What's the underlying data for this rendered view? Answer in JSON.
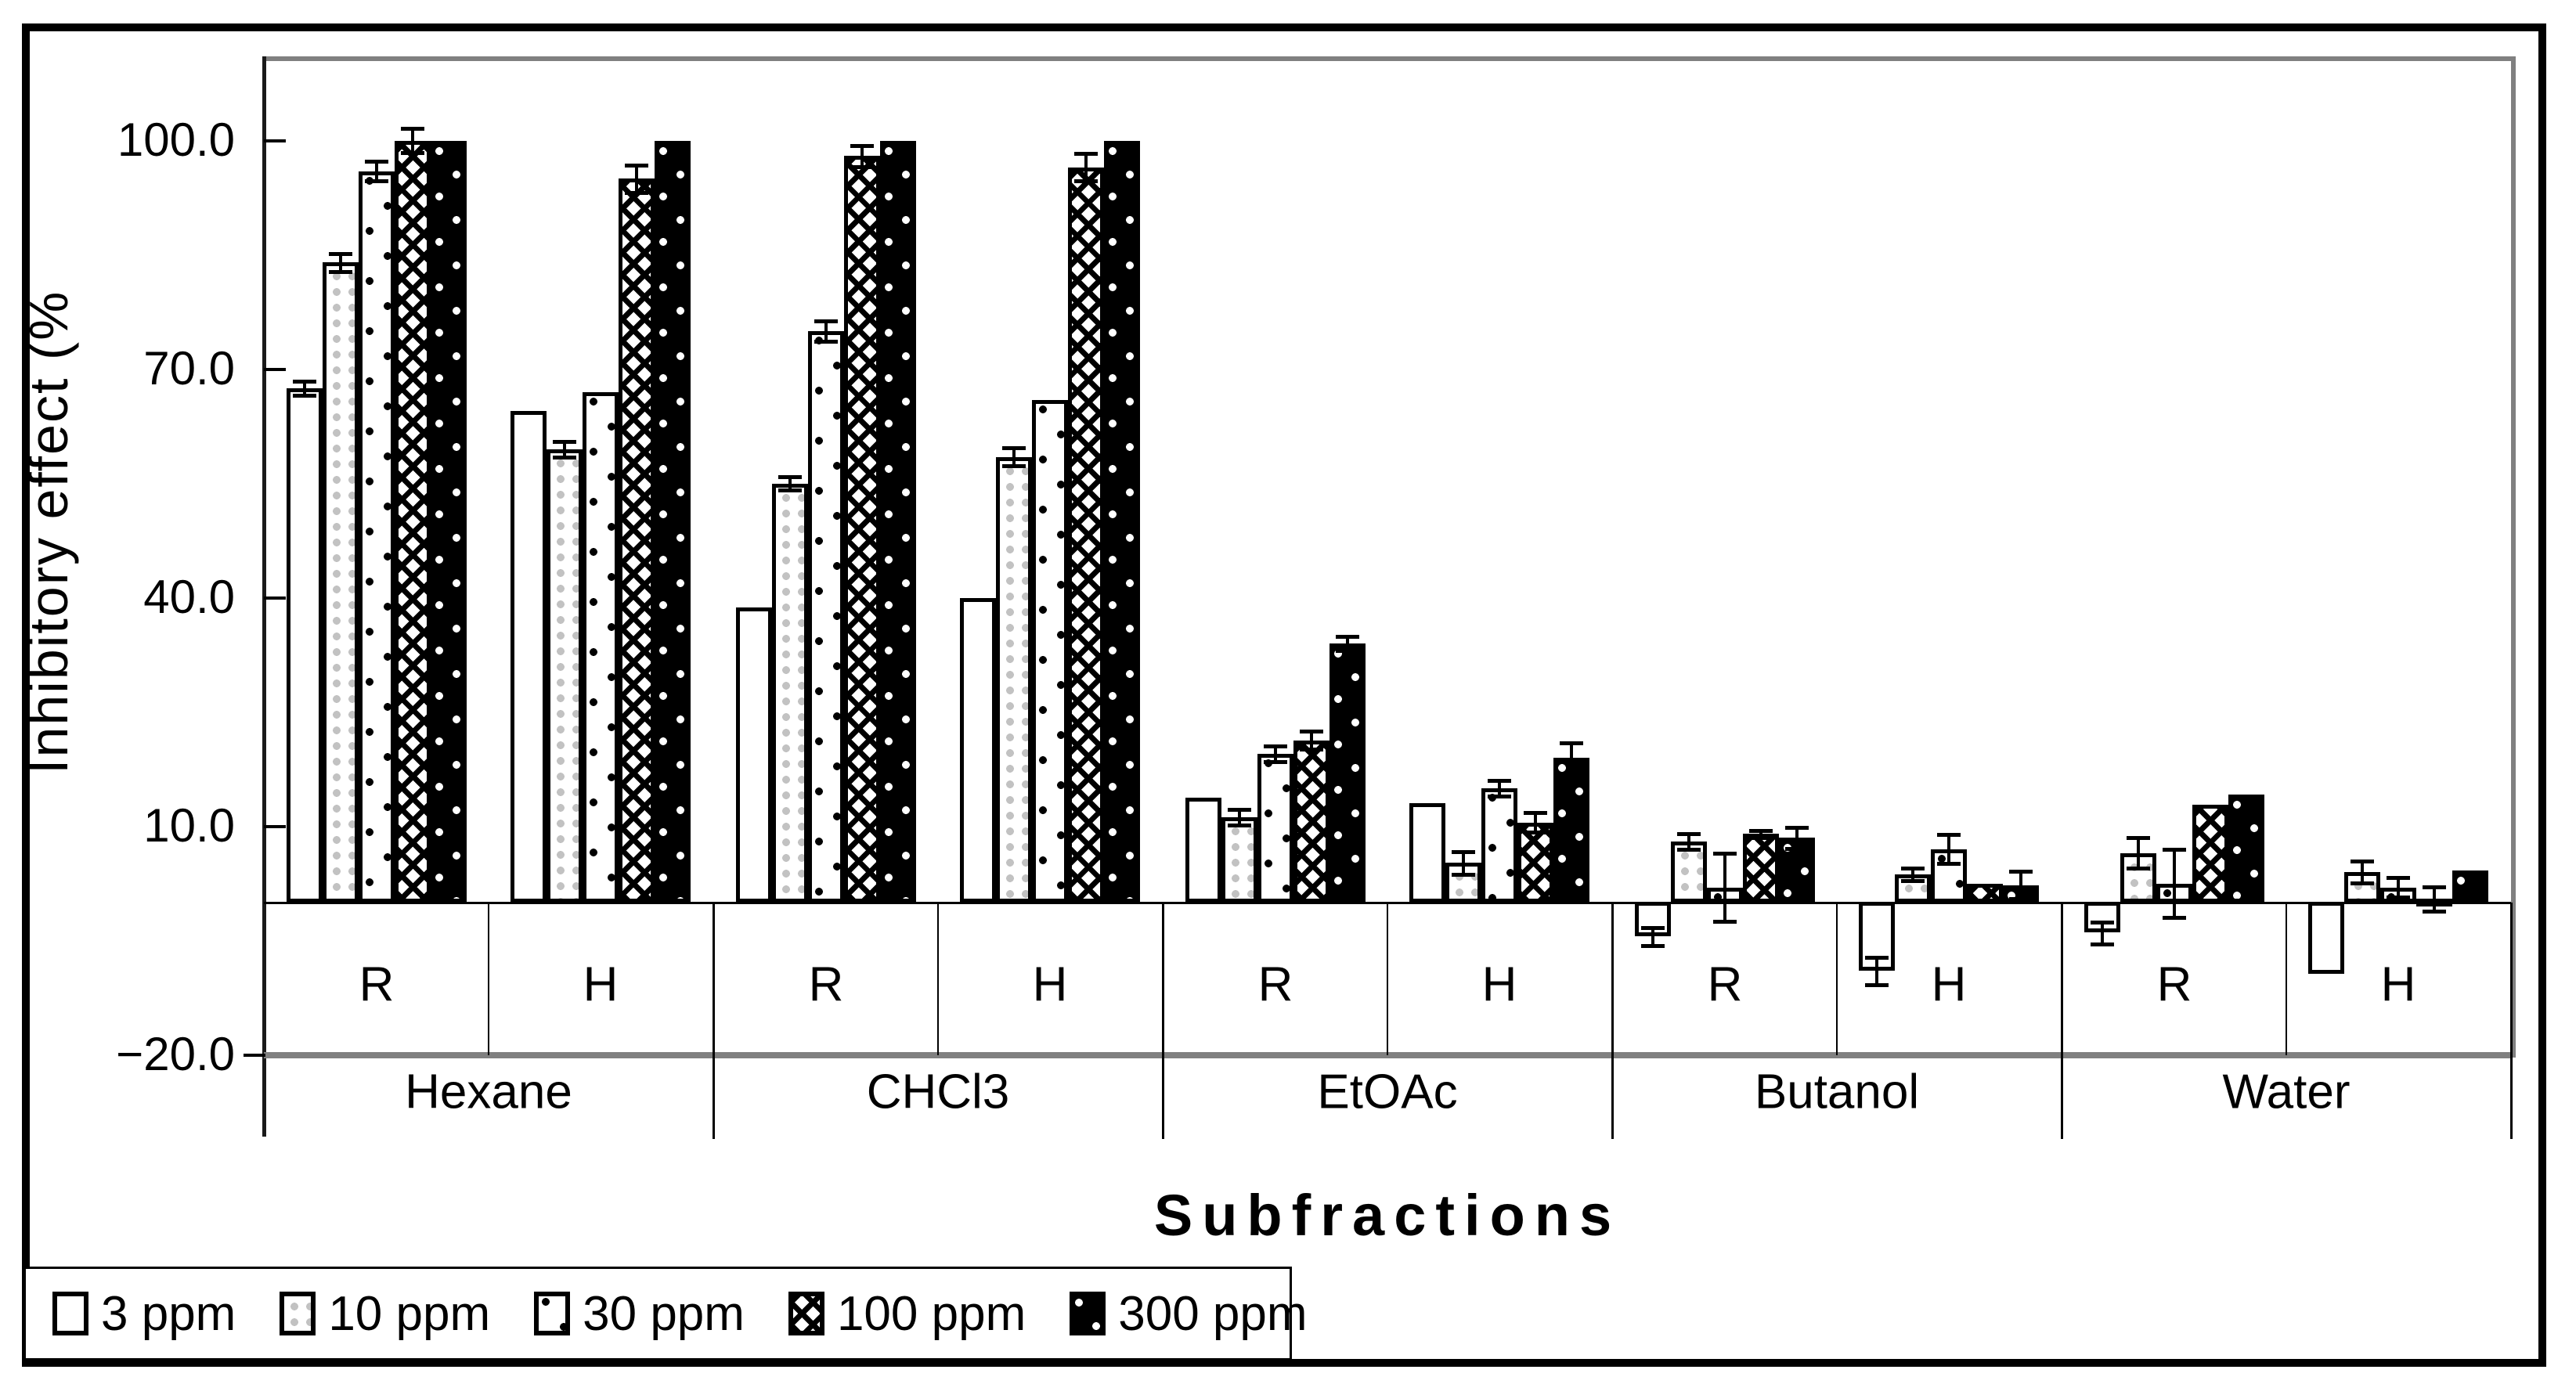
{
  "figure": {
    "y_axis": {
      "label": "Inhibitory effect (%",
      "ticks": [
        {
          "label": "100.0",
          "value": 100
        },
        {
          "label": "70.0",
          "value": 70
        },
        {
          "label": "40.0",
          "value": 40
        },
        {
          "label": "10.0",
          "value": 10
        },
        {
          "label": "−20.0",
          "value": -20
        }
      ]
    },
    "x_axis": {
      "title": "Subfractions"
    },
    "legend": [
      {
        "label": "3 ppm",
        "pattern": "plain-white"
      },
      {
        "label": "10 ppm",
        "pattern": "gray-dot-grid"
      },
      {
        "label": "30 ppm",
        "pattern": "sparse-black-dot"
      },
      {
        "label": "100 ppm",
        "pattern": "crosshatch"
      },
      {
        "label": "300 ppm",
        "pattern": "black-white-dot"
      }
    ],
    "colors": {
      "frame_black": "#000000",
      "grid_gray": "#808080",
      "dot_gray": "#c2c2c2",
      "bar_white": "#ffffff",
      "bar_black": "#000000"
    },
    "chart_data": {
      "type": "bar",
      "title": "",
      "xlabel": "Subfractions",
      "ylabel": "Inhibitory effect (%",
      "ylim": [
        -20,
        112
      ],
      "grid": false,
      "legend_position": "bottom-left",
      "series_labels": [
        "3 ppm",
        "10 ppm",
        "30 ppm",
        "100 ppm",
        "300 ppm"
      ],
      "series_patterns": [
        "plain-white",
        "gray-dot-grid",
        "sparse-black-dot",
        "crosshatch",
        "black-white-dot"
      ],
      "groups": [
        {
          "name": "Hexane",
          "subgroups": [
            {
              "name": "R",
              "values": [
                67.5,
                84.0,
                96.0,
                100.0,
                100.0
              ],
              "errors": [
                0.9,
                1.2,
                1.3,
                1.6,
                null
              ]
            },
            {
              "name": "H",
              "values": [
                64.5,
                59.5,
                67.0,
                95.0,
                100.0
              ],
              "errors": [
                null,
                1.0,
                null,
                1.8,
                null
              ]
            }
          ]
        },
        {
          "name": "CHCl3",
          "subgroups": [
            {
              "name": "R",
              "values": [
                38.7,
                55.0,
                75.0,
                98.0,
                100.0
              ],
              "errors": [
                null,
                0.9,
                1.3,
                1.4,
                null
              ]
            },
            {
              "name": "H",
              "values": [
                40.0,
                58.5,
                66.0,
                96.5,
                100.0
              ],
              "errors": [
                null,
                1.2,
                null,
                1.8,
                null
              ]
            }
          ]
        },
        {
          "name": "EtOAc",
          "subgroups": [
            {
              "name": "R",
              "values": [
                13.8,
                11.2,
                19.5,
                21.3,
                34.0
              ],
              "errors": [
                null,
                1.0,
                1.0,
                1.2,
                0.9
              ]
            },
            {
              "name": "H",
              "values": [
                13.0,
                5.2,
                15.0,
                10.5,
                19.0
              ],
              "errors": [
                null,
                1.5,
                1.0,
                1.3,
                2.0
              ]
            }
          ]
        },
        {
          "name": "Butanol",
          "subgroups": [
            {
              "name": "R",
              "values": [
                -4.5,
                8.0,
                2.0,
                9.0,
                8.5
              ],
              "errors": [
                1.2,
                1.0,
                4.5,
                0.5,
                1.4
              ]
            },
            {
              "name": "H",
              "values": [
                -9.0,
                3.7,
                7.0,
                2.5,
                2.3
              ],
              "errors": [
                1.8,
                0.8,
                1.9,
                null,
                1.8
              ]
            }
          ]
        },
        {
          "name": "Water",
          "subgroups": [
            {
              "name": "R",
              "values": [
                -4.0,
                6.5,
                2.5,
                12.8,
                14.2
              ],
              "errors": [
                1.4,
                2.0,
                4.5,
                null,
                null
              ]
            },
            {
              "name": "H",
              "values": [
                -9.5,
                4.0,
                2.0,
                0.5,
                4.2
              ],
              "errors": [
                null,
                1.4,
                1.3,
                1.6,
                null
              ]
            }
          ]
        }
      ]
    }
  }
}
